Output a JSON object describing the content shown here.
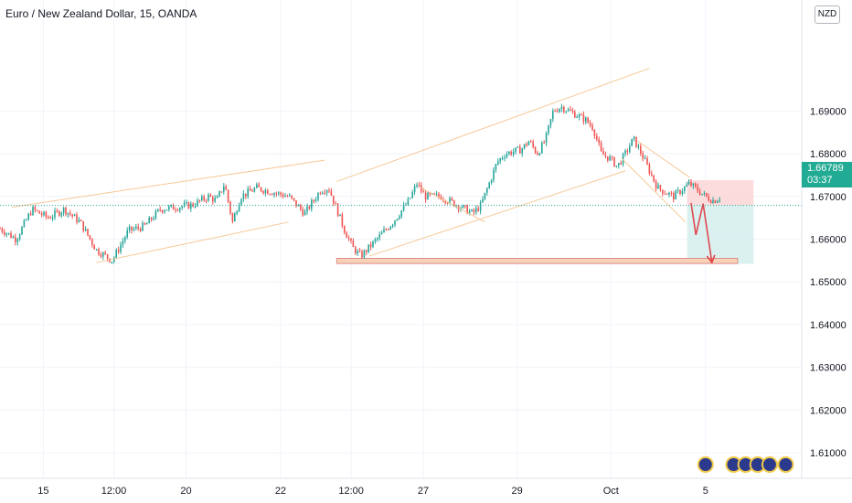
{
  "title": "Euro / New Zealand Dollar, 15, OANDA",
  "currency": "NZD",
  "last_price": "1.66789",
  "countdown": "03:37",
  "colors": {
    "up": "#26a69a",
    "down": "#ef5350",
    "trendline": "#f7c896",
    "target_box": "#f6d3b8",
    "arrow": "#e0474c",
    "stop_zone": "#fbd6d6",
    "profit_zone": "#d6efee",
    "price_line": "#26a69a",
    "event_icon": "#2b3a8c"
  },
  "chart_data": {
    "type": "candlestick",
    "symbol": "Euro / New Zealand Dollar",
    "interval": "15",
    "exchange": "OANDA",
    "ylim": [
      1.604,
      1.716
    ],
    "y_ticks": [
      "1.61000",
      "1.62000",
      "1.63000",
      "1.64000",
      "1.65000",
      "1.66000",
      "1.67000",
      "1.68000",
      "1.69000"
    ],
    "x_ticks": [
      "15",
      "12:00",
      "20",
      "22",
      "12:00",
      "27",
      "29",
      "Oct",
      "5"
    ],
    "last_price": 1.66789,
    "grid": true,
    "price_path": [
      {
        "t": 0,
        "p": 1.6625
      },
      {
        "t": 0.02,
        "p": 1.66
      },
      {
        "t": 0.04,
        "p": 1.667
      },
      {
        "t": 0.06,
        "p": 1.665
      },
      {
        "t": 0.08,
        "p": 1.667
      },
      {
        "t": 0.1,
        "p": 1.664
      },
      {
        "t": 0.12,
        "p": 1.6575
      },
      {
        "t": 0.14,
        "p": 1.655
      },
      {
        "t": 0.16,
        "p": 1.662
      },
      {
        "t": 0.18,
        "p": 1.663
      },
      {
        "t": 0.2,
        "p": 1.667
      },
      {
        "t": 0.24,
        "p": 1.668
      },
      {
        "t": 0.26,
        "p": 1.67
      },
      {
        "t": 0.27,
        "p": 1.669
      },
      {
        "t": 0.28,
        "p": 1.673
      },
      {
        "t": 0.29,
        "p": 1.664
      },
      {
        "t": 0.3,
        "p": 1.67
      },
      {
        "t": 0.32,
        "p": 1.672
      },
      {
        "t": 0.34,
        "p": 1.671
      },
      {
        "t": 0.36,
        "p": 1.67
      },
      {
        "t": 0.38,
        "p": 1.666
      },
      {
        "t": 0.4,
        "p": 1.6715
      },
      {
        "t": 0.41,
        "p": 1.672
      },
      {
        "t": 0.43,
        "p": 1.662
      },
      {
        "t": 0.44,
        "p": 1.658
      },
      {
        "t": 0.45,
        "p": 1.656
      },
      {
        "t": 0.47,
        "p": 1.66
      },
      {
        "t": 0.49,
        "p": 1.664
      },
      {
        "t": 0.51,
        "p": 1.669
      },
      {
        "t": 0.52,
        "p": 1.673
      },
      {
        "t": 0.53,
        "p": 1.67
      },
      {
        "t": 0.55,
        "p": 1.67
      },
      {
        "t": 0.57,
        "p": 1.668
      },
      {
        "t": 0.59,
        "p": 1.666
      },
      {
        "t": 0.6,
        "p": 1.668
      },
      {
        "t": 0.61,
        "p": 1.673
      },
      {
        "t": 0.62,
        "p": 1.678
      },
      {
        "t": 0.63,
        "p": 1.68
      },
      {
        "t": 0.65,
        "p": 1.681
      },
      {
        "t": 0.66,
        "p": 1.683
      },
      {
        "t": 0.67,
        "p": 1.68
      },
      {
        "t": 0.68,
        "p": 1.683
      },
      {
        "t": 0.69,
        "p": 1.69
      },
      {
        "t": 0.7,
        "p": 1.691
      },
      {
        "t": 0.72,
        "p": 1.689
      },
      {
        "t": 0.73,
        "p": 1.688
      },
      {
        "t": 0.74,
        "p": 1.686
      },
      {
        "t": 0.75,
        "p": 1.68
      },
      {
        "t": 0.76,
        "p": 1.679
      },
      {
        "t": 0.77,
        "p": 1.677
      },
      {
        "t": 0.78,
        "p": 1.68
      },
      {
        "t": 0.79,
        "p": 1.6835
      },
      {
        "t": 0.8,
        "p": 1.68
      },
      {
        "t": 0.81,
        "p": 1.676
      },
      {
        "t": 0.82,
        "p": 1.672
      },
      {
        "t": 0.84,
        "p": 1.67
      },
      {
        "t": 0.86,
        "p": 1.673
      },
      {
        "t": 0.88,
        "p": 1.67
      },
      {
        "t": 0.89,
        "p": 1.669
      },
      {
        "t": 0.9,
        "p": 1.67
      }
    ],
    "annotations": {
      "channels": [
        [
          [
            0.015,
            1.6675
          ],
          [
            0.405,
            1.6785
          ]
        ],
        [
          [
            0.12,
            1.6545
          ],
          [
            0.36,
            1.664
          ]
        ],
        [
          [
            0.42,
            1.6735
          ],
          [
            0.81,
            1.7
          ]
        ],
        [
          [
            0.46,
            1.656
          ],
          [
            0.78,
            1.676
          ]
        ],
        [
          [
            0.525,
            1.672
          ],
          [
            0.605,
            1.664
          ]
        ],
        [
          [
            0.795,
            1.683
          ],
          [
            0.86,
            1.6745
          ]
        ],
        [
          [
            0.775,
            1.679
          ],
          [
            0.855,
            1.664
          ]
        ]
      ],
      "target_box": {
        "t0": 0.42,
        "t1": 0.92,
        "p_top": 1.6555,
        "p_bottom": 1.6543
      },
      "arrow": [
        [
          0.862,
          1.6685
        ],
        [
          0.868,
          1.661
        ],
        [
          0.877,
          1.6683
        ],
        [
          0.888,
          1.6545
        ]
      ],
      "short_position": {
        "t0": 0.857,
        "t1": 0.94,
        "entry": 1.6679,
        "stop": 1.6738,
        "target": 1.6542
      },
      "event_icons": [
        0.88,
        0.915,
        0.93,
        0.945,
        0.96,
        0.98
      ]
    }
  }
}
